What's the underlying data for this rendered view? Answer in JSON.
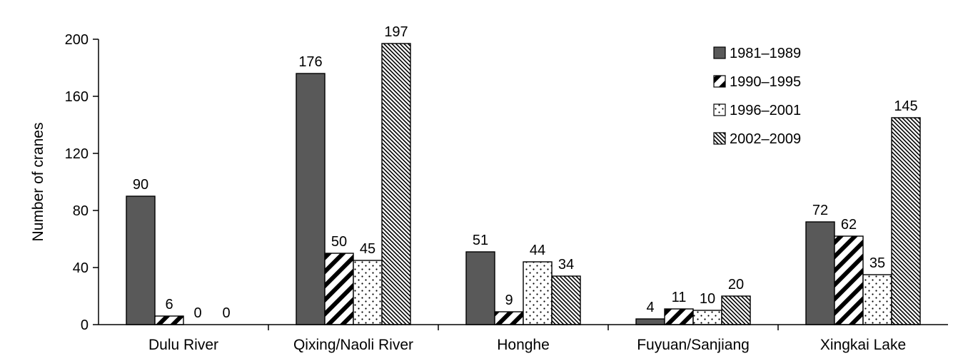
{
  "chart_data": {
    "type": "bar",
    "categories": [
      "Dulu River",
      "Qixing/Naoli River",
      "Honghe",
      "Fuyuan/Sanjiang",
      "Xingkai Lake"
    ],
    "series": [
      {
        "name": "1981–1989",
        "values": [
          90,
          176,
          51,
          4,
          72
        ],
        "pattern": "solid",
        "color": "#595959"
      },
      {
        "name": "1990–1995",
        "values": [
          6,
          50,
          9,
          11,
          62
        ],
        "pattern": "diagonal-thick",
        "color": "#000000"
      },
      {
        "name": "1996–2001",
        "values": [
          0,
          45,
          44,
          10,
          35
        ],
        "pattern": "dots",
        "color": "#000000"
      },
      {
        "name": "2002–2009",
        "values": [
          0,
          197,
          34,
          20,
          145
        ],
        "pattern": "diagonal-fine",
        "color": "#000000"
      }
    ],
    "value_labels": [
      [
        "90",
        "176",
        "51",
        "4",
        "72"
      ],
      [
        "6",
        "50",
        "9",
        "11",
        "62"
      ],
      [
        "0",
        "45",
        "44",
        "10",
        "35"
      ],
      [
        "0",
        "197",
        "34",
        "20",
        "145"
      ]
    ],
    "title": "",
    "xlabel": "",
    "ylabel": "Number of cranes",
    "ylim": [
      0,
      200
    ],
    "yticks": [
      0,
      40,
      80,
      120,
      160,
      200
    ],
    "ytick_labels": [
      "0",
      "40",
      "80",
      "120",
      "160",
      "200"
    ],
    "grid": false,
    "legend_position": "top-right"
  }
}
